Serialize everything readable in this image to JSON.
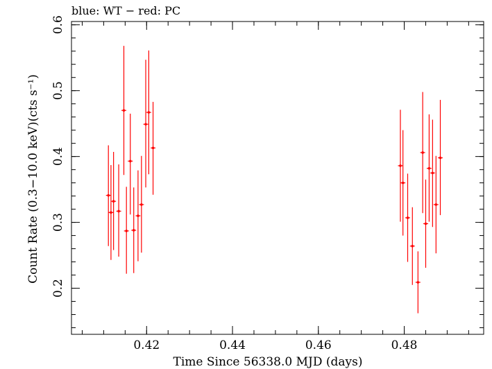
{
  "chart_data": {
    "type": "scatter",
    "title": "blue: WT − red: PC",
    "xlabel": "Time Since 56338.0 MJD (days)",
    "ylabel": "Count Rate (0.3−10.0 keV)(cts s⁻¹)",
    "xlim": [
      0.4025,
      0.4985
    ],
    "ylim": [
      0.13,
      0.605
    ],
    "xticks": [
      0.42,
      0.44,
      0.46,
      0.48
    ],
    "xtick_labels": [
      "0.42",
      "0.44",
      "0.46",
      "0.48"
    ],
    "yticks": [
      0.2,
      0.3,
      0.4,
      0.5,
      0.6
    ],
    "ytick_labels": [
      "0.2",
      "0.3",
      "0.4",
      "0.5",
      "0.6"
    ],
    "grid": false,
    "series": [
      {
        "color": "#ff0000",
        "points": [
          {
            "x": 0.4111,
            "y": 0.341,
            "ylo": 0.264,
            "yhi": 0.417
          },
          {
            "x": 0.4117,
            "y": 0.315,
            "ylo": 0.243,
            "yhi": 0.387
          },
          {
            "x": 0.4123,
            "y": 0.332,
            "ylo": 0.258,
            "yhi": 0.407
          },
          {
            "x": 0.4135,
            "y": 0.317,
            "ylo": 0.248,
            "yhi": 0.388
          },
          {
            "x": 0.4147,
            "y": 0.47,
            "ylo": 0.372,
            "yhi": 0.568
          },
          {
            "x": 0.4153,
            "y": 0.287,
            "ylo": 0.222,
            "yhi": 0.354
          },
          {
            "x": 0.4162,
            "y": 0.393,
            "ylo": 0.312,
            "yhi": 0.465
          },
          {
            "x": 0.417,
            "y": 0.288,
            "ylo": 0.223,
            "yhi": 0.353
          },
          {
            "x": 0.418,
            "y": 0.31,
            "ylo": 0.241,
            "yhi": 0.379
          },
          {
            "x": 0.4188,
            "y": 0.327,
            "ylo": 0.254,
            "yhi": 0.401
          },
          {
            "x": 0.4198,
            "y": 0.449,
            "ylo": 0.353,
            "yhi": 0.547
          },
          {
            "x": 0.4205,
            "y": 0.467,
            "ylo": 0.373,
            "yhi": 0.561
          },
          {
            "x": 0.4215,
            "y": 0.413,
            "ylo": 0.342,
            "yhi": 0.483
          },
          {
            "x": 0.4791,
            "y": 0.386,
            "ylo": 0.301,
            "yhi": 0.471
          },
          {
            "x": 0.4797,
            "y": 0.36,
            "ylo": 0.28,
            "yhi": 0.44
          },
          {
            "x": 0.4808,
            "y": 0.307,
            "ylo": 0.24,
            "yhi": 0.374
          },
          {
            "x": 0.4819,
            "y": 0.264,
            "ylo": 0.205,
            "yhi": 0.323
          },
          {
            "x": 0.4832,
            "y": 0.209,
            "ylo": 0.162,
            "yhi": 0.256
          },
          {
            "x": 0.4843,
            "y": 0.406,
            "ylo": 0.314,
            "yhi": 0.498
          },
          {
            "x": 0.485,
            "y": 0.298,
            "ylo": 0.231,
            "yhi": 0.365
          },
          {
            "x": 0.4858,
            "y": 0.382,
            "ylo": 0.301,
            "yhi": 0.464
          },
          {
            "x": 0.4866,
            "y": 0.375,
            "ylo": 0.293,
            "yhi": 0.456
          },
          {
            "x": 0.4874,
            "y": 0.327,
            "ylo": 0.253,
            "yhi": 0.401
          },
          {
            "x": 0.4884,
            "y": 0.398,
            "ylo": 0.311,
            "yhi": 0.486
          }
        ]
      }
    ]
  }
}
